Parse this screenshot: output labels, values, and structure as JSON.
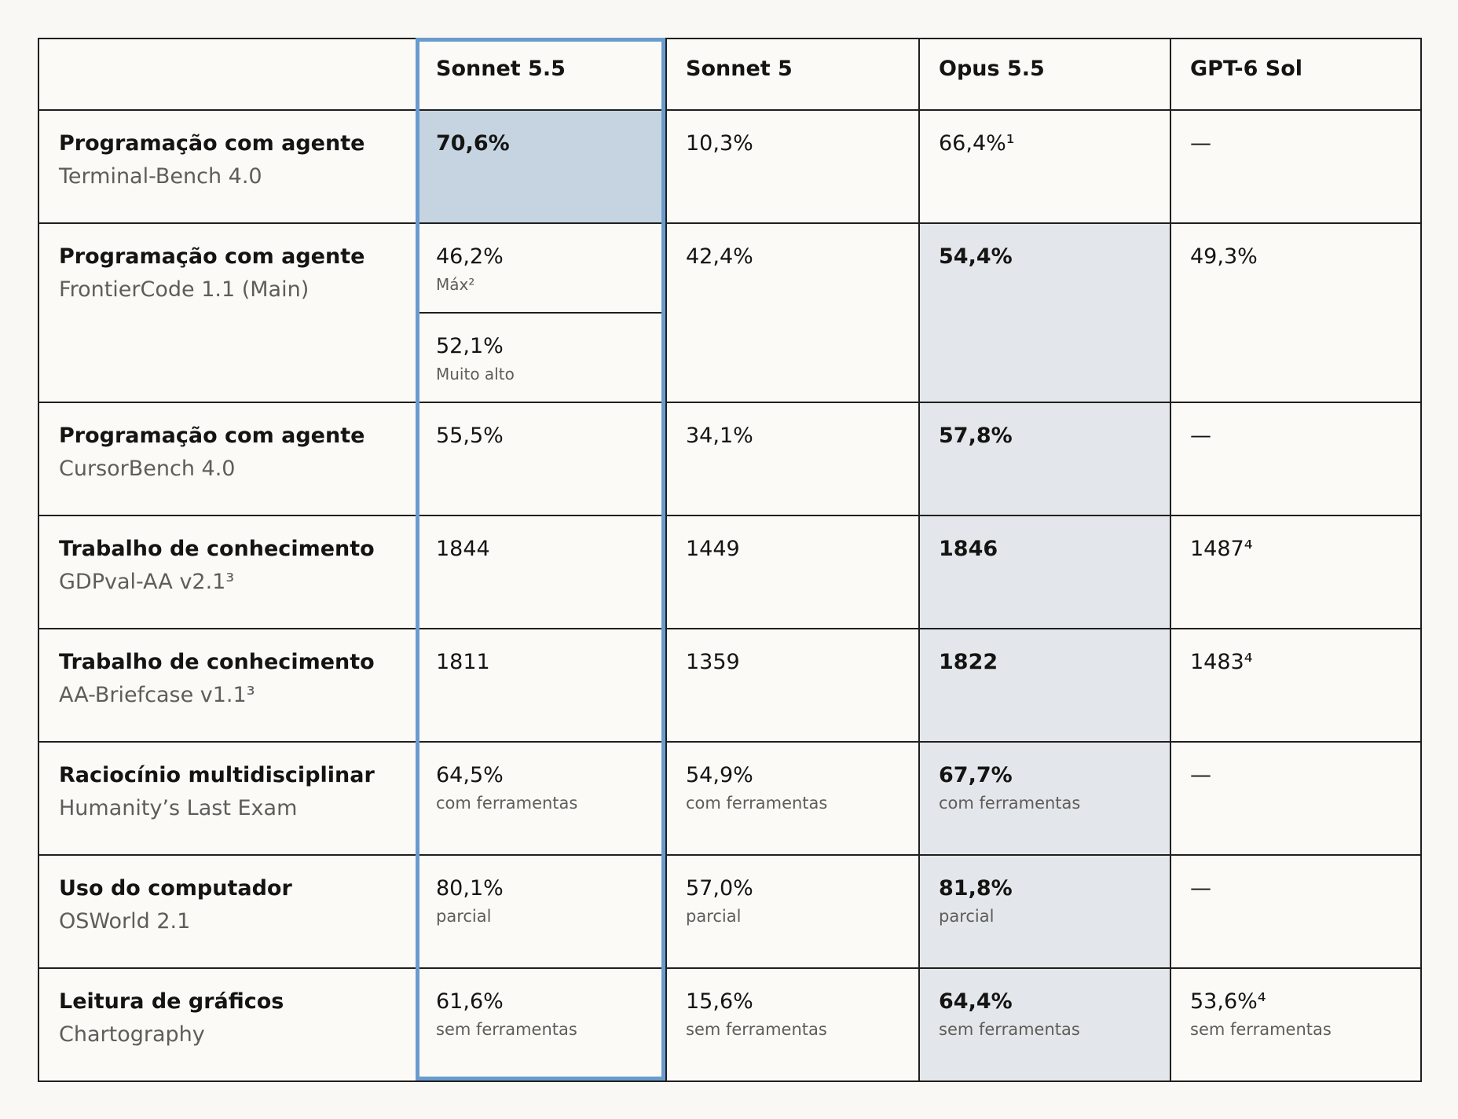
{
  "colors": {
    "background": "#f9f8f4",
    "column_highlight_border": "#6a9bce",
    "cell_highlight_strong": "#c6d4e2",
    "cell_highlight_soft": "#e3e7eb"
  },
  "headers": [
    "",
    "Sonnet 5.5",
    "Sonnet 5",
    "Opus 5.5",
    "GPT-6 Sol"
  ],
  "rows": [
    {
      "category": "Programação com agente",
      "benchmark": "Terminal-Bench 4.0",
      "sonnet55": {
        "value": "70,6%"
      },
      "sonnet5": {
        "value": "10,3%"
      },
      "opus55": {
        "value": "66,4%¹"
      },
      "gpt6": {
        "value": "—"
      }
    },
    {
      "category": "Programação com agente",
      "benchmark": "FrontierCode 1.1 (Main)",
      "sonnet55": {
        "value": "46,2%",
        "note": "Máx²",
        "value2": "52,1%",
        "note2": "Muito alto"
      },
      "sonnet5": {
        "value": "42,4%"
      },
      "opus55": {
        "value": "54,4%"
      },
      "gpt6": {
        "value": "49,3%"
      }
    },
    {
      "category": "Programação com agente",
      "benchmark": "CursorBench 4.0",
      "sonnet55": {
        "value": "55,5%"
      },
      "sonnet5": {
        "value": "34,1%"
      },
      "opus55": {
        "value": "57,8%"
      },
      "gpt6": {
        "value": "—"
      }
    },
    {
      "category": "Trabalho de conhecimento",
      "benchmark": "GDPval-AA v2.1³",
      "sonnet55": {
        "value": "1844"
      },
      "sonnet5": {
        "value": "1449"
      },
      "opus55": {
        "value": "1846"
      },
      "gpt6": {
        "value": "1487⁴"
      }
    },
    {
      "category": "Trabalho de conhecimento",
      "benchmark": "AA-Briefcase v1.1³",
      "sonnet55": {
        "value": "1811"
      },
      "sonnet5": {
        "value": "1359"
      },
      "opus55": {
        "value": "1822"
      },
      "gpt6": {
        "value": "1483⁴"
      }
    },
    {
      "category": "Raciocínio multidisciplinar",
      "benchmark": "Humanity’s Last Exam",
      "sonnet55": {
        "value": "64,5%",
        "note": "com ferramentas"
      },
      "sonnet5": {
        "value": "54,9%",
        "note": "com ferramentas"
      },
      "opus55": {
        "value": "67,7%",
        "note": "com ferramentas"
      },
      "gpt6": {
        "value": "—"
      }
    },
    {
      "category": "Uso do computador",
      "benchmark": "OSWorld 2.1",
      "sonnet55": {
        "value": "80,1%",
        "note": "parcial"
      },
      "sonnet5": {
        "value": "57,0%",
        "note": "parcial"
      },
      "opus55": {
        "value": "81,8%",
        "note": "parcial"
      },
      "gpt6": {
        "value": "—"
      }
    },
    {
      "category": "Leitura de gráficos",
      "benchmark": "Chartography",
      "sonnet55": {
        "value": "61,6%",
        "note": "sem ferramentas"
      },
      "sonnet5": {
        "value": "15,6%",
        "note": "sem ferramentas"
      },
      "opus55": {
        "value": "64,4%",
        "note": "sem ferramentas"
      },
      "gpt6": {
        "value": "53,6%⁴",
        "note": "sem ferramentas"
      }
    }
  ]
}
